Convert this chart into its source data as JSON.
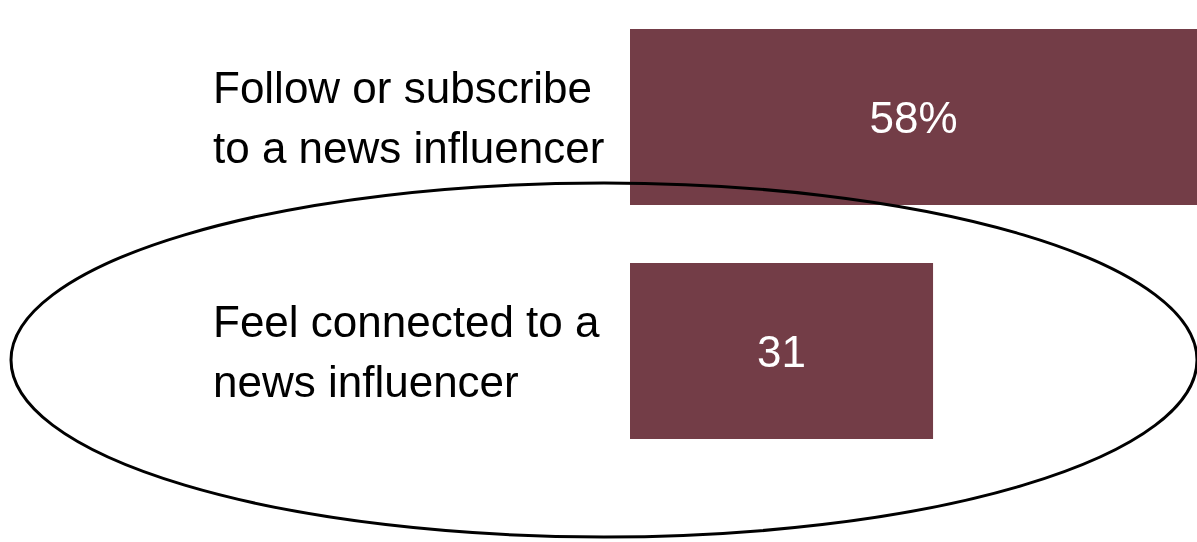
{
  "chart_data": {
    "type": "bar",
    "orientation": "horizontal",
    "categories": [
      "Follow or subscribe to a news influencer",
      "Feel connected to a news influencer"
    ],
    "values": [
      58,
      31
    ],
    "color": "#733d47",
    "value_labels": [
      "58%",
      "31"
    ]
  }
}
